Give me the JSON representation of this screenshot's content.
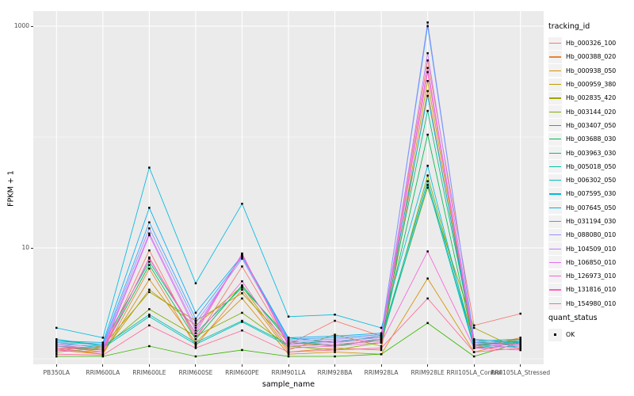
{
  "figure": {
    "background": "#FFFFFF",
    "panel_background": "#EBEBEB",
    "gridline_color": "#FFFFFF",
    "tick_color": "#333333",
    "axis_text_color": "#4D4D4D",
    "point_color": "#000000"
  },
  "legend": {
    "tracking_title": "tracking_id",
    "quant_title": "quant_status",
    "quant_label": "OK",
    "key_background": "#F2F2F2",
    "quant_marker_color": "#000000"
  },
  "chart_data": {
    "type": "line",
    "title": "",
    "xlabel": "sample_name",
    "ylabel": "FPKM + 1",
    "yscale": "log10",
    "ylim": [
      0.89,
      1370
    ],
    "grid": true,
    "legend_position": "right",
    "yticks": [
      {
        "value": 10,
        "label": "10"
      },
      {
        "value": 1000,
        "label": "1000"
      }
    ],
    "minor_gridlines": [
      1,
      100
    ],
    "categories": [
      "PB350LA",
      "RRIM600LA",
      "RRIM600LE",
      "RRIM600SE",
      "RRIM600PE",
      "RRIM901LA",
      "RRIM928BA",
      "RRIM928LA",
      "RRIM928LE",
      "RRII105LA_Control",
      "RRII105LA_Stressed"
    ],
    "series": [
      {
        "name": "Hb_000326_100",
        "color": "#F8766D",
        "values": [
          1.35,
          1.2,
          9.5,
          1.5,
          6.8,
          1.35,
          2.2,
          1.6,
          490,
          2.0,
          2.55
        ]
      },
      {
        "name": "Hb_000388_020",
        "color": "#EA8331",
        "values": [
          1.2,
          1.1,
          6.5,
          1.3,
          4.2,
          1.15,
          1.25,
          1.2,
          260,
          1.25,
          1.55
        ]
      },
      {
        "name": "Hb_000938_050",
        "color": "#D89000",
        "values": [
          1.25,
          1.1,
          5.2,
          1.4,
          3.5,
          1.1,
          1.15,
          1.1,
          5.3,
          1.15,
          1.45
        ]
      },
      {
        "name": "Hb_000959_380",
        "color": "#C09B00",
        "values": [
          1.3,
          1.15,
          4.2,
          2.0,
          4.5,
          1.2,
          1.65,
          1.3,
          320,
          1.3,
          1.5
        ]
      },
      {
        "name": "Hb_002835_420",
        "color": "#A3A500",
        "values": [
          1.2,
          1.3,
          4.0,
          2.2,
          3.9,
          1.4,
          1.3,
          1.5,
          35,
          1.9,
          1.2
        ]
      },
      {
        "name": "Hb_003144_020",
        "color": "#7CAE00",
        "values": [
          1.15,
          1.25,
          2.8,
          1.6,
          2.6,
          1.3,
          1.2,
          1.4,
          45,
          1.4,
          1.35
        ]
      },
      {
        "name": "Hb_003407_050",
        "color": "#39B600",
        "values": [
          1.05,
          1.05,
          1.3,
          1.05,
          1.2,
          1.05,
          1.05,
          1.1,
          2.1,
          1.05,
          1.4
        ]
      },
      {
        "name": "Hb_003688_030",
        "color": "#00BB4E",
        "values": [
          1.3,
          1.2,
          7.0,
          1.5,
          4.6,
          1.45,
          1.3,
          1.5,
          105,
          1.35,
          1.4
        ]
      },
      {
        "name": "Hb_003963_030",
        "color": "#00BF7D",
        "values": [
          1.45,
          1.35,
          7.5,
          1.7,
          4.4,
          1.55,
          1.4,
          1.6,
          172,
          1.45,
          1.5
        ]
      },
      {
        "name": "Hb_005018_050",
        "color": "#00C1A3",
        "values": [
          1.5,
          1.3,
          2.5,
          1.4,
          2.2,
          1.35,
          1.45,
          1.55,
          40,
          1.3,
          1.45
        ]
      },
      {
        "name": "Hb_006302_050",
        "color": "#00BFC4",
        "values": [
          1.4,
          1.25,
          2.4,
          1.35,
          2.15,
          1.3,
          1.35,
          1.45,
          37,
          1.25,
          1.4
        ]
      },
      {
        "name": "Hb_007595_030",
        "color": "#00BAE0",
        "values": [
          1.9,
          1.55,
          53,
          4.8,
          25,
          2.4,
          2.5,
          1.9,
          55,
          1.25,
          1.3
        ]
      },
      {
        "name": "Hb_007645_050",
        "color": "#00B0F6",
        "values": [
          1.45,
          1.4,
          23,
          2.6,
          8.5,
          1.55,
          1.6,
          1.7,
          235,
          1.4,
          1.45
        ]
      },
      {
        "name": "Hb_031194_030",
        "color": "#35A2FF",
        "values": [
          1.4,
          1.35,
          17,
          2.3,
          8.3,
          1.5,
          1.55,
          1.65,
          1000,
          1.5,
          1.4
        ]
      },
      {
        "name": "Hb_088080_010",
        "color": "#9590FF",
        "values": [
          1.35,
          1.3,
          15,
          2.1,
          8.0,
          1.45,
          1.5,
          1.6,
          1080,
          1.45,
          1.35
        ]
      },
      {
        "name": "Hb_104509_010",
        "color": "#C77CFF",
        "values": [
          1.3,
          1.25,
          13.5,
          1.9,
          8.6,
          1.4,
          1.45,
          1.55,
          570,
          1.4,
          1.3
        ]
      },
      {
        "name": "Hb_106850_010",
        "color": "#E76BF3",
        "values": [
          1.25,
          1.2,
          13.0,
          1.8,
          8.8,
          1.35,
          1.4,
          1.5,
          420,
          1.35,
          1.25
        ]
      },
      {
        "name": "Hb_126973_010",
        "color": "#FA62DB",
        "values": [
          1.2,
          1.15,
          8.2,
          1.6,
          5.0,
          1.25,
          1.3,
          1.4,
          9.3,
          1.25,
          1.2
        ]
      },
      {
        "name": "Hb_131816_010",
        "color": "#FF62BC",
        "values": [
          1.25,
          1.2,
          8.0,
          1.7,
          8.9,
          1.3,
          1.35,
          1.45,
          385,
          1.3,
          1.35
        ]
      },
      {
        "name": "Hb_154980_010",
        "color": "#FF6A98",
        "values": [
          1.1,
          1.08,
          2.0,
          1.25,
          1.8,
          1.15,
          1.2,
          1.25,
          3.5,
          1.15,
          1.25
        ]
      }
    ]
  }
}
